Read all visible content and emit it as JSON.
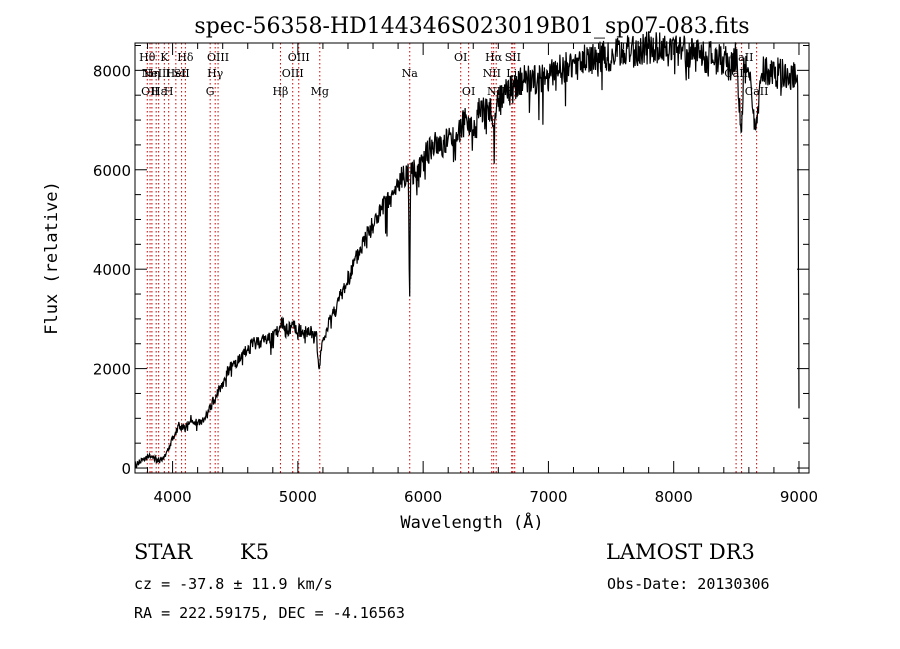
{
  "chart_data": {
    "type": "line",
    "title": "spec-56358-HD144346S023019B01_sp07-083.fits",
    "xlabel": "Wavelength (Å)",
    "ylabel": "Flux (relative)",
    "xlim": [
      3700,
      9080
    ],
    "ylim": [
      -100,
      8550
    ],
    "xticks": [
      4000,
      5000,
      6000,
      7000,
      8000,
      9000
    ],
    "yticks": [
      0,
      2000,
      4000,
      6000,
      8000
    ],
    "series": [
      {
        "name": "flux",
        "x": [
          3700,
          3750,
          3800,
          3850,
          3900,
          3950,
          4000,
          4050,
          4100,
          4150,
          4200,
          4250,
          4300,
          4350,
          4400,
          4450,
          4500,
          4550,
          4600,
          4650,
          4700,
          4750,
          4800,
          4850,
          4880,
          4900,
          4950,
          5000,
          5050,
          5100,
          5150,
          5170,
          5180,
          5200,
          5250,
          5300,
          5350,
          5400,
          5450,
          5500,
          5550,
          5600,
          5650,
          5700,
          5750,
          5800,
          5850,
          5880,
          5893,
          5900,
          5950,
          6000,
          6050,
          6100,
          6150,
          6200,
          6250,
          6300,
          6350,
          6400,
          6450,
          6500,
          6550,
          6563,
          6600,
          6650,
          6700,
          6750,
          6800,
          6900,
          7000,
          7100,
          7200,
          7300,
          7400,
          7500,
          7600,
          7700,
          7800,
          7900,
          8000,
          8100,
          8200,
          8300,
          8400,
          8450,
          8500,
          8542,
          8560,
          8600,
          8662,
          8700,
          8800,
          8900,
          8950,
          8990,
          9000
        ],
        "y": [
          50,
          150,
          250,
          200,
          150,
          300,
          600,
          850,
          800,
          1000,
          900,
          950,
          1200,
          1500,
          1700,
          2000,
          2100,
          2200,
          2400,
          2500,
          2550,
          2600,
          2650,
          2800,
          2900,
          2750,
          2850,
          2800,
          2700,
          2750,
          2600,
          1900,
          2300,
          2500,
          3000,
          3200,
          3500,
          3800,
          4100,
          4400,
          4700,
          4900,
          5100,
          5300,
          5400,
          5700,
          5900,
          6000,
          3400,
          5900,
          6000,
          6200,
          6400,
          6500,
          6500,
          6600,
          6700,
          6850,
          7000,
          6800,
          7200,
          7300,
          7100,
          6800,
          7400,
          7500,
          7600,
          7700,
          7800,
          7800,
          7900,
          8000,
          8100,
          8200,
          8250,
          8300,
          8350,
          8400,
          8450,
          8450,
          8400,
          8350,
          8300,
          8250,
          8200,
          8100,
          8300,
          6600,
          8100,
          8000,
          6800,
          8000,
          7950,
          7900,
          7900,
          7700,
          1200
        ]
      }
    ],
    "lines": [
      {
        "wave": 3798,
        "label": "Hθ",
        "row": 1
      },
      {
        "wave": 3820,
        "label": "OII",
        "row": 3
      },
      {
        "wave": 3835,
        "label": "Hη",
        "row": 2
      },
      {
        "wave": 3869,
        "label": "NeIII",
        "row": 2
      },
      {
        "wave": 3889,
        "label": "Hε",
        "row": 3
      },
      {
        "wave": 3934,
        "label": "K",
        "row": 1
      },
      {
        "wave": 3969,
        "label": "H",
        "row": 3
      },
      {
        "wave": 4026,
        "label": "HeI",
        "row": 2
      },
      {
        "wave": 4072,
        "label": "SII",
        "row": 2
      },
      {
        "wave": 4102,
        "label": "Hδ",
        "row": 1
      },
      {
        "wave": 4300,
        "label": "G",
        "row": 3
      },
      {
        "wave": 4340,
        "label": "Hγ",
        "row": 2
      },
      {
        "wave": 4363,
        "label": "OIII",
        "row": 1
      },
      {
        "wave": 4861,
        "label": "Hβ",
        "row": 3
      },
      {
        "wave": 4959,
        "label": "OIII",
        "row": 2
      },
      {
        "wave": 5007,
        "label": "OIII",
        "row": 1
      },
      {
        "wave": 5175,
        "label": "Mg",
        "row": 3
      },
      {
        "wave": 5893,
        "label": "Na",
        "row": 2
      },
      {
        "wave": 6300,
        "label": "OI",
        "row": 1
      },
      {
        "wave": 6363,
        "label": "OI",
        "row": 3
      },
      {
        "wave": 6548,
        "label": "NII",
        "row": 2
      },
      {
        "wave": 6563,
        "label": "Hα",
        "row": 1
      },
      {
        "wave": 6583,
        "label": "NII",
        "row": 3
      },
      {
        "wave": 6707,
        "label": "Li",
        "row": 2
      },
      {
        "wave": 6716,
        "label": "SII",
        "row": 1
      },
      {
        "wave": 6731,
        "label": "SII",
        "row": 3
      },
      {
        "wave": 8498,
        "label": "CaII",
        "row": 2
      },
      {
        "wave": 8542,
        "label": "CaII",
        "row": 1
      },
      {
        "wave": 8662,
        "label": "CaII",
        "row": 3
      }
    ]
  },
  "info": {
    "class": "STAR",
    "subclass": "K5",
    "survey": "LAMOST DR3",
    "cz": "cz = -37.8 ± 11.9 km/s",
    "obsdate": "Obs-Date: 20130306",
    "radec": "RA = 222.59175, DEC =  -4.16563"
  }
}
